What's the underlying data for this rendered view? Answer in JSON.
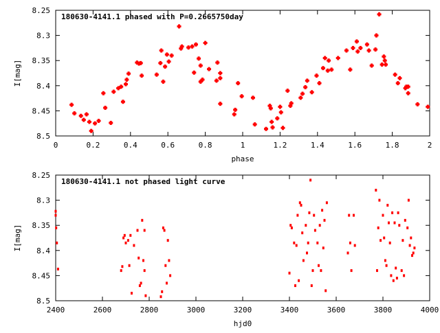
{
  "colors": {
    "points": "#ff0000",
    "axis": "#000000",
    "background": "#ffffff"
  },
  "chart_data": [
    {
      "type": "scatter",
      "title": "180630-4141.1 phased with P=0.2665750day",
      "xlabel": "phase",
      "ylabel": "I[mag]",
      "xlim": [
        0,
        2
      ],
      "ylim": [
        8.5,
        8.25
      ],
      "y_inverted": true,
      "grid": false,
      "marker": "cross",
      "x_ticks": [
        "0",
        "0.2",
        "0.4",
        "0.6",
        "0.8",
        "1",
        "1.2",
        "1.4",
        "1.6",
        "1.8",
        "2"
      ],
      "y_ticks": [
        "8.25",
        "8.3",
        "8.35",
        "8.4",
        "8.45",
        "8.5"
      ],
      "points": [
        [
          0.085,
          8.438
        ],
        [
          0.1,
          8.455
        ],
        [
          0.135,
          8.46
        ],
        [
          0.15,
          8.468
        ],
        [
          0.165,
          8.457
        ],
        [
          0.18,
          8.472
        ],
        [
          0.19,
          8.49
        ],
        [
          0.21,
          8.475
        ],
        [
          0.23,
          8.47
        ],
        [
          0.255,
          8.415
        ],
        [
          0.265,
          8.444
        ],
        [
          0.295,
          8.474
        ],
        [
          0.31,
          8.412
        ],
        [
          0.335,
          8.405
        ],
        [
          0.35,
          8.402
        ],
        [
          0.36,
          8.432
        ],
        [
          0.375,
          8.397
        ],
        [
          0.38,
          8.388
        ],
        [
          0.39,
          8.376
        ],
        [
          0.435,
          8.354
        ],
        [
          0.445,
          8.356
        ],
        [
          0.455,
          8.355
        ],
        [
          0.46,
          8.38
        ],
        [
          0.54,
          8.378
        ],
        [
          0.56,
          8.355
        ],
        [
          0.565,
          8.33
        ],
        [
          0.575,
          8.392
        ],
        [
          0.585,
          8.362
        ],
        [
          0.595,
          8.338
        ],
        [
          0.605,
          8.352
        ],
        [
          0.62,
          8.34
        ],
        [
          0.66,
          8.282
        ],
        [
          0.67,
          8.326
        ],
        [
          0.675,
          8.322
        ],
        [
          0.71,
          8.324
        ],
        [
          0.73,
          8.322
        ],
        [
          0.74,
          8.374
        ],
        [
          0.75,
          8.318
        ],
        [
          0.765,
          8.346
        ],
        [
          0.775,
          8.36
        ],
        [
          0.775,
          8.392
        ],
        [
          0.785,
          8.388
        ],
        [
          0.8,
          8.315
        ],
        [
          0.82,
          8.367
        ],
        [
          0.86,
          8.39
        ],
        [
          0.865,
          8.354
        ],
        [
          0.88,
          8.375
        ],
        [
          0.88,
          8.385
        ],
        [
          0.88,
          8.436
        ],
        [
          0.955,
          8.457
        ],
        [
          0.96,
          8.448
        ],
        [
          0.975,
          8.395
        ],
        [
          0.995,
          8.421
        ],
        [
          1.055,
          8.424
        ],
        [
          1.065,
          8.477
        ],
        [
          1.125,
          8.486
        ],
        [
          1.145,
          8.44
        ],
        [
          1.15,
          8.445
        ],
        [
          1.155,
          8.472
        ],
        [
          1.16,
          8.483
        ],
        [
          1.185,
          8.465
        ],
        [
          1.2,
          8.442
        ],
        [
          1.205,
          8.453
        ],
        [
          1.215,
          8.484
        ],
        [
          1.24,
          8.41
        ],
        [
          1.255,
          8.44
        ],
        [
          1.26,
          8.435
        ],
        [
          1.31,
          8.424
        ],
        [
          1.32,
          8.416
        ],
        [
          1.335,
          8.403
        ],
        [
          1.345,
          8.39
        ],
        [
          1.37,
          8.413
        ],
        [
          1.395,
          8.38
        ],
        [
          1.41,
          8.395
        ],
        [
          1.43,
          8.365
        ],
        [
          1.44,
          8.345
        ],
        [
          1.455,
          8.37
        ],
        [
          1.46,
          8.35
        ],
        [
          1.475,
          8.368
        ],
        [
          1.51,
          8.345
        ],
        [
          1.555,
          8.33
        ],
        [
          1.575,
          8.368
        ],
        [
          1.59,
          8.325
        ],
        [
          1.61,
          8.312
        ],
        [
          1.615,
          8.332
        ],
        [
          1.63,
          8.325
        ],
        [
          1.665,
          8.318
        ],
        [
          1.675,
          8.33
        ],
        [
          1.69,
          8.36
        ],
        [
          1.71,
          8.328
        ],
        [
          1.715,
          8.3
        ],
        [
          1.73,
          8.258
        ],
        [
          1.745,
          8.358
        ],
        [
          1.755,
          8.342
        ],
        [
          1.76,
          8.35
        ],
        [
          1.765,
          8.358
        ],
        [
          1.815,
          8.378
        ],
        [
          1.83,
          8.395
        ],
        [
          1.84,
          8.385
        ],
        [
          1.87,
          8.405
        ],
        [
          1.875,
          8.402
        ],
        [
          1.885,
          8.402
        ],
        [
          1.885,
          8.415
        ],
        [
          1.935,
          8.437
        ],
        [
          1.99,
          8.442
        ]
      ]
    },
    {
      "type": "scatter",
      "title": "180630-4141.1 not phased light curve",
      "xlabel": "hjd0",
      "ylabel": "I[mag]",
      "xlim": [
        2400,
        4000
      ],
      "ylim": [
        8.5,
        8.25
      ],
      "y_inverted": true,
      "grid": false,
      "marker": "dot",
      "x_ticks": [
        "2400",
        "2600",
        "2800",
        "3000",
        "3200",
        "3400",
        "3600",
        "3800",
        "4000"
      ],
      "y_ticks": [
        "8.25",
        "8.3",
        "8.35",
        "8.4",
        "8.45",
        "8.5"
      ],
      "points": [
        [
          2400,
          8.322
        ],
        [
          2400,
          8.33
        ],
        [
          2402,
          8.355
        ],
        [
          2405,
          8.385
        ],
        [
          2410,
          8.437
        ],
        [
          2680,
          8.44
        ],
        [
          2685,
          8.432
        ],
        [
          2690,
          8.375
        ],
        [
          2695,
          8.37
        ],
        [
          2700,
          8.385
        ],
        [
          2710,
          8.38
        ],
        [
          2715,
          8.43
        ],
        [
          2720,
          8.37
        ],
        [
          2725,
          8.485
        ],
        [
          2735,
          8.39
        ],
        [
          2750,
          8.36
        ],
        [
          2755,
          8.415
        ],
        [
          2760,
          8.47
        ],
        [
          2765,
          8.465
        ],
        [
          2770,
          8.34
        ],
        [
          2775,
          8.42
        ],
        [
          2780,
          8.36
        ],
        [
          2780,
          8.44
        ],
        [
          2785,
          8.49
        ],
        [
          2850,
          8.492
        ],
        [
          2855,
          8.482
        ],
        [
          2860,
          8.355
        ],
        [
          2865,
          8.36
        ],
        [
          2870,
          8.43
        ],
        [
          2875,
          8.465
        ],
        [
          2880,
          8.38
        ],
        [
          2885,
          8.42
        ],
        [
          2890,
          8.45
        ],
        [
          3400,
          8.445
        ],
        [
          3405,
          8.35
        ],
        [
          3410,
          8.355
        ],
        [
          3420,
          8.385
        ],
        [
          3425,
          8.47
        ],
        [
          3430,
          8.39
        ],
        [
          3435,
          8.33
        ],
        [
          3440,
          8.46
        ],
        [
          3445,
          8.305
        ],
        [
          3450,
          8.31
        ],
        [
          3455,
          8.365
        ],
        [
          3460,
          8.42
        ],
        [
          3470,
          8.35
        ],
        [
          3475,
          8.405
        ],
        [
          3480,
          8.385
        ],
        [
          3485,
          8.325
        ],
        [
          3490,
          8.26
        ],
        [
          3495,
          8.47
        ],
        [
          3500,
          8.44
        ],
        [
          3505,
          8.33
        ],
        [
          3510,
          8.36
        ],
        [
          3520,
          8.385
        ],
        [
          3525,
          8.43
        ],
        [
          3530,
          8.35
        ],
        [
          3535,
          8.44
        ],
        [
          3540,
          8.32
        ],
        [
          3545,
          8.395
        ],
        [
          3550,
          8.34
        ],
        [
          3555,
          8.48
        ],
        [
          3560,
          8.305
        ],
        [
          3650,
          8.405
        ],
        [
          3655,
          8.33
        ],
        [
          3660,
          8.385
        ],
        [
          3665,
          8.44
        ],
        [
          3675,
          8.33
        ],
        [
          3680,
          8.39
        ],
        [
          3770,
          8.28
        ],
        [
          3775,
          8.44
        ],
        [
          3780,
          8.355
        ],
        [
          3785,
          8.3
        ],
        [
          3790,
          8.38
        ],
        [
          3800,
          8.33
        ],
        [
          3805,
          8.375
        ],
        [
          3810,
          8.42
        ],
        [
          3815,
          8.43
        ],
        [
          3820,
          8.31
        ],
        [
          3825,
          8.345
        ],
        [
          3830,
          8.385
        ],
        [
          3835,
          8.45
        ],
        [
          3840,
          8.325
        ],
        [
          3845,
          8.46
        ],
        [
          3850,
          8.345
        ],
        [
          3855,
          8.435
        ],
        [
          3860,
          8.455
        ],
        [
          3865,
          8.325
        ],
        [
          3870,
          8.35
        ],
        [
          3880,
          8.44
        ],
        [
          3885,
          8.38
        ],
        [
          3890,
          8.45
        ],
        [
          3895,
          8.34
        ],
        [
          3905,
          8.355
        ],
        [
          3910,
          8.3
        ],
        [
          3915,
          8.39
        ],
        [
          3920,
          8.375
        ],
        [
          3925,
          8.41
        ],
        [
          3930,
          8.405
        ],
        [
          3935,
          8.395
        ]
      ]
    }
  ]
}
